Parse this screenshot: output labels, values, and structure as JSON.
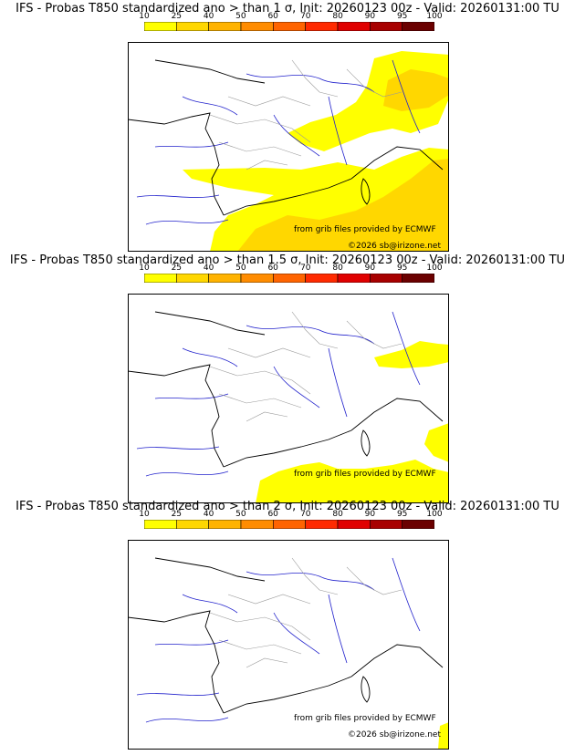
{
  "colorbar": {
    "ticks": [
      "10",
      "25",
      "40",
      "50",
      "60",
      "70",
      "80",
      "90",
      "95",
      "100"
    ],
    "colors": [
      "#ffff00",
      "#ffd700",
      "#ffb300",
      "#ff8c00",
      "#ff6400",
      "#ff2a00",
      "#e00000",
      "#a80000",
      "#6b0000"
    ]
  },
  "colors": {
    "coast": "#000000",
    "rivers": "#2222cc",
    "borders": "#999999"
  },
  "panels": [
    {
      "title": "IFS - Probas T850  standardized ano > than 1 σ, Init: 20260123 00z - Valid: 20260131:00 TU",
      "source": "from grib files provided by ECMWF",
      "copyright": "©2026 sb@irizone.net"
    },
    {
      "title": "IFS - Probas T850  standardized ano > than 1.5 σ, Init: 20260123 00z - Valid: 20260131:00 TU",
      "source": "from grib files provided by ECMWF",
      "copyright": ""
    },
    {
      "title": "IFS - Probas T850  standardized ano > than 2 σ, Init: 20260123 00z - Valid: 20260131:00 TU",
      "source": "from grib files provided by ECMWF",
      "copyright": "©2026 sb@irizone.net"
    }
  ]
}
